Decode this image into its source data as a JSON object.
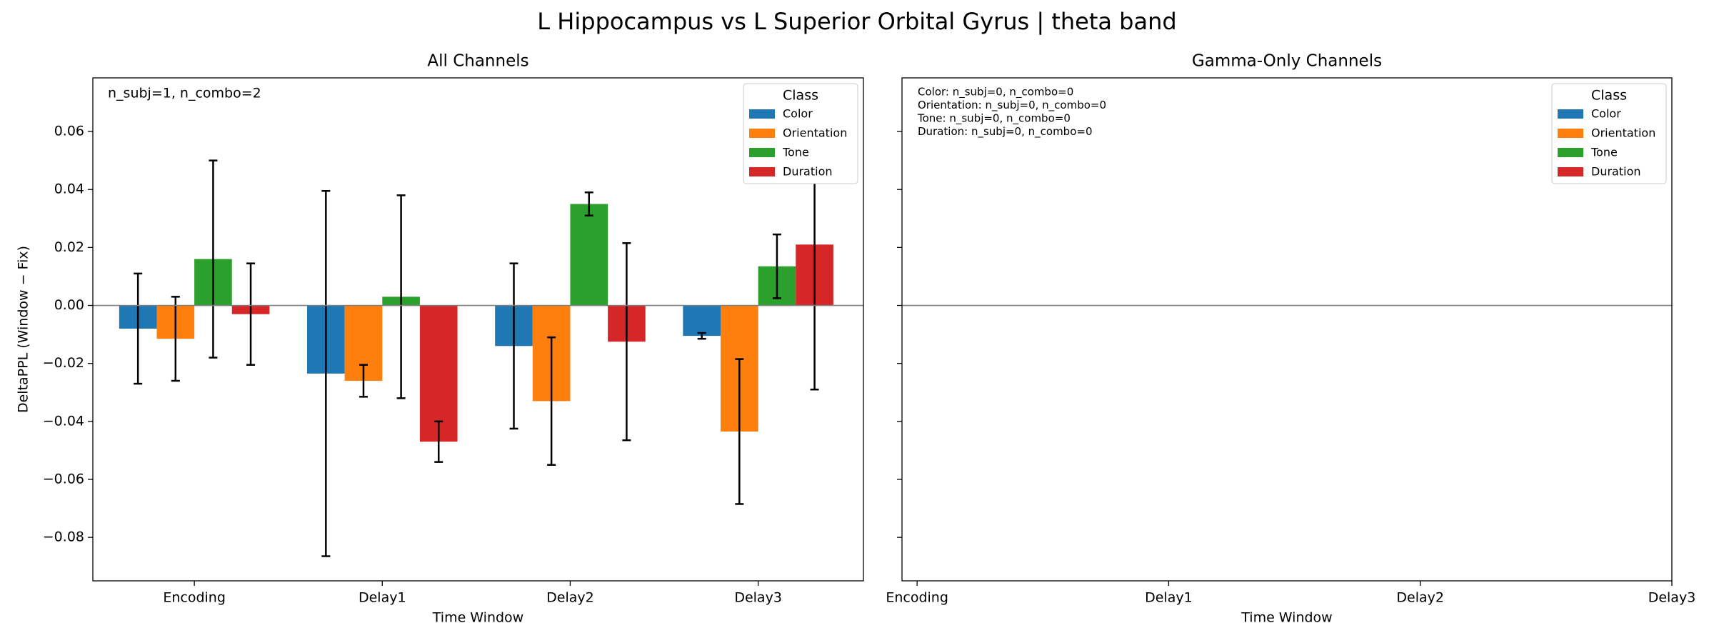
{
  "title": "L Hippocampus vs L Superior Orbital Gyrus  |  theta band",
  "chart_data": [
    {
      "type": "bar",
      "title": "All Channels",
      "xlabel": "Time Window",
      "ylabel": "DeltaPPL (Window − Fix)",
      "annotation": "n_subj=1, n_combo=2",
      "legend_title": "Class",
      "legend": "upper right",
      "categories": [
        "Encoding",
        "Delay1",
        "Delay2",
        "Delay3"
      ],
      "series": [
        {
          "name": "Color",
          "color": "#1f77b4",
          "values": [
            -0.008,
            -0.0235,
            -0.014,
            -0.0105
          ],
          "errors": [
            0.019,
            0.063,
            0.0285,
            0.001
          ]
        },
        {
          "name": "Orientation",
          "color": "#ff7f0e",
          "values": [
            -0.0115,
            -0.026,
            -0.033,
            -0.0435
          ],
          "errors": [
            0.0145,
            0.0055,
            0.022,
            0.025
          ]
        },
        {
          "name": "Tone",
          "color": "#2ca02c",
          "values": [
            0.016,
            0.003,
            0.035,
            0.0135
          ],
          "errors": [
            0.034,
            0.035,
            0.004,
            0.011
          ]
        },
        {
          "name": "Duration",
          "color": "#d62728",
          "values": [
            -0.003,
            -0.047,
            -0.0125,
            0.021
          ],
          "errors": [
            0.0175,
            0.007,
            0.034,
            0.05
          ]
        }
      ],
      "ylim": [
        -0.095,
        0.0785
      ],
      "yticks": [
        {
          "value": -0.08,
          "label": "−0.08"
        },
        {
          "value": -0.06,
          "label": "−0.06"
        },
        {
          "value": -0.04,
          "label": "−0.04"
        },
        {
          "value": -0.02,
          "label": "−0.02"
        },
        {
          "value": 0,
          "label": "0.00"
        },
        {
          "value": 0.02,
          "label": "0.02"
        },
        {
          "value": 0.04,
          "label": "0.04"
        },
        {
          "value": 0.06,
          "label": "0.06"
        }
      ]
    },
    {
      "type": "bar",
      "title": "Gamma-Only Channels",
      "xlabel": "Time Window",
      "annotations": [
        "Color: n_subj=0, n_combo=0",
        "Orientation: n_subj=0, n_combo=0",
        "Tone: n_subj=0, n_combo=0",
        "Duration: n_subj=0, n_combo=0"
      ],
      "legend_title": "Class",
      "legend": "upper right",
      "series": [
        {
          "name": "Color",
          "color": "#1f77b4"
        },
        {
          "name": "Orientation",
          "color": "#ff7f0e"
        },
        {
          "name": "Tone",
          "color": "#2ca02c"
        },
        {
          "name": "Duration",
          "color": "#d62728"
        }
      ],
      "xlim": [
        -0.06,
        3
      ],
      "xticks": [
        {
          "value": 0,
          "label": "Encoding"
        },
        {
          "value": 1,
          "label": "Delay1"
        },
        {
          "value": 2,
          "label": "Delay2"
        },
        {
          "value": 3,
          "label": "Delay3"
        }
      ],
      "ylim": [
        -0.095,
        0.0785
      ],
      "yticks": [
        -0.08,
        -0.06,
        -0.04,
        -0.02,
        0,
        0.02,
        0.04,
        0.06
      ]
    }
  ]
}
